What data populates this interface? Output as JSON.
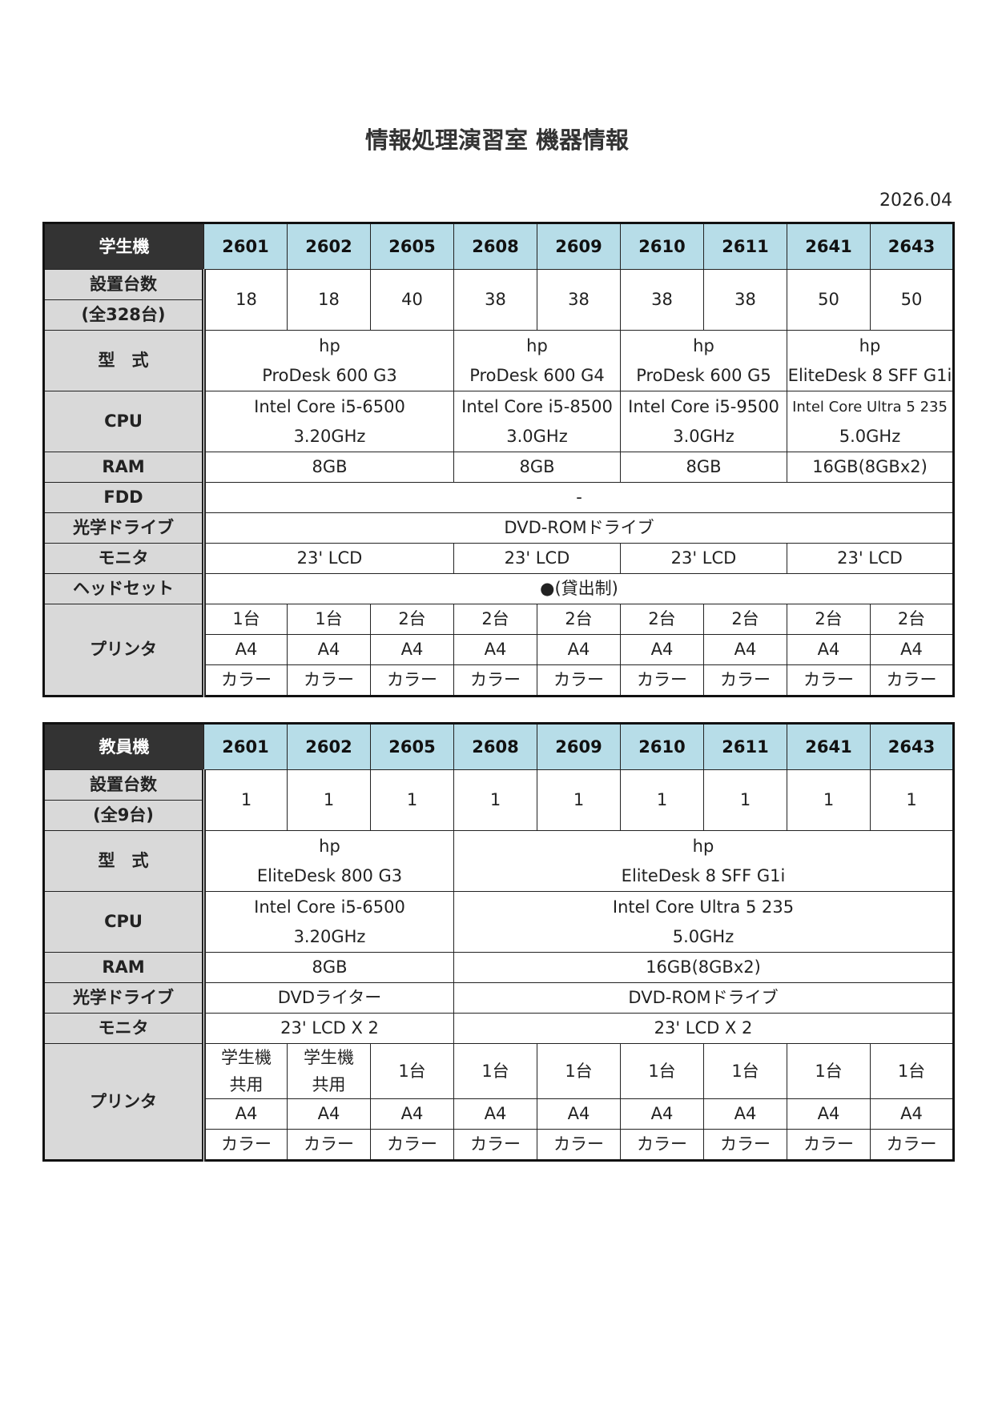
{
  "title": "情報処理演習室 機器情報",
  "date": "2026.04",
  "colors": {
    "header_bg": "#b7dde8",
    "corner_bg": "#333333",
    "label_bg": "#d9d9d9"
  },
  "tables": [
    {
      "corner": "学生機",
      "rooms": [
        "2601",
        "2602",
        "2605",
        "2608",
        "2609",
        "2610",
        "2611",
        "2641",
        "2643"
      ],
      "count_label": [
        "設置台数",
        "(全328台)"
      ],
      "counts": [
        "18",
        "18",
        "40",
        "38",
        "38",
        "38",
        "38",
        "50",
        "50"
      ],
      "rows": [
        {
          "label": "型　式",
          "cells": [
            {
              "span": 3,
              "lines": [
                "hp",
                "ProDesk 600 G3"
              ]
            },
            {
              "span": 2,
              "lines": [
                "hp",
                "ProDesk 600 G4"
              ]
            },
            {
              "span": 2,
              "lines": [
                "hp",
                "ProDesk 600 G5"
              ]
            },
            {
              "span": 2,
              "lines": [
                "hp",
                "EliteDesk 8 SFF G1i"
              ]
            }
          ]
        },
        {
          "label": "CPU",
          "cells": [
            {
              "span": 3,
              "lines": [
                "Intel Core i5-6500",
                "3.20GHz"
              ]
            },
            {
              "span": 2,
              "lines": [
                "Intel Core i5-8500",
                "3.0GHz"
              ]
            },
            {
              "span": 2,
              "lines": [
                "Intel Core i5-9500",
                "3.0GHz"
              ]
            },
            {
              "span": 2,
              "lines": [
                "Intel Core Ultra 5  235",
                "5.0GHz"
              ],
              "small_first": true
            }
          ]
        },
        {
          "label": "RAM",
          "cells": [
            {
              "span": 3,
              "lines": [
                "8GB"
              ]
            },
            {
              "span": 2,
              "lines": [
                "8GB"
              ]
            },
            {
              "span": 2,
              "lines": [
                "8GB"
              ]
            },
            {
              "span": 2,
              "lines": [
                "16GB(8GBx2)"
              ]
            }
          ]
        },
        {
          "label": "FDD",
          "cells": [
            {
              "span": 9,
              "lines": [
                "-"
              ]
            }
          ]
        },
        {
          "label": "光学ドライブ",
          "cells": [
            {
              "span": 9,
              "lines": [
                "DVD-ROMドライブ"
              ]
            }
          ]
        },
        {
          "label": "モニタ",
          "cells": [
            {
              "span": 3,
              "lines": [
                "23' LCD"
              ]
            },
            {
              "span": 2,
              "lines": [
                "23' LCD"
              ]
            },
            {
              "span": 2,
              "lines": [
                "23' LCD"
              ]
            },
            {
              "span": 2,
              "lines": [
                "23' LCD"
              ]
            }
          ]
        },
        {
          "label": "ヘッドセット",
          "cells": [
            {
              "span": 9,
              "lines": [
                "●(貸出制)"
              ]
            }
          ]
        }
      ],
      "printer": {
        "label": "プリンタ",
        "rows": [
          [
            [
              "1台"
            ],
            [
              "1台"
            ],
            [
              "2台"
            ],
            [
              "2台"
            ],
            [
              "2台"
            ],
            [
              "2台"
            ],
            [
              "2台"
            ],
            [
              "2台"
            ],
            [
              "2台"
            ]
          ],
          [
            [
              "A4"
            ],
            [
              "A4"
            ],
            [
              "A4"
            ],
            [
              "A4"
            ],
            [
              "A4"
            ],
            [
              "A4"
            ],
            [
              "A4"
            ],
            [
              "A4"
            ],
            [
              "A4"
            ]
          ],
          [
            [
              "カラー"
            ],
            [
              "カラー"
            ],
            [
              "カラー"
            ],
            [
              "カラー"
            ],
            [
              "カラー"
            ],
            [
              "カラー"
            ],
            [
              "カラー"
            ],
            [
              "カラー"
            ],
            [
              "カラー"
            ]
          ]
        ]
      }
    },
    {
      "corner": "教員機",
      "rooms": [
        "2601",
        "2602",
        "2605",
        "2608",
        "2609",
        "2610",
        "2611",
        "2641",
        "2643"
      ],
      "count_label": [
        "設置台数",
        "(全9台)"
      ],
      "counts": [
        "1",
        "1",
        "1",
        "1",
        "1",
        "1",
        "1",
        "1",
        "1"
      ],
      "rows": [
        {
          "label": "型　式",
          "cells": [
            {
              "span": 3,
              "lines": [
                "hp",
                "EliteDesk 800 G3"
              ]
            },
            {
              "span": 6,
              "lines": [
                "hp",
                "EliteDesk 8 SFF G1i"
              ]
            }
          ]
        },
        {
          "label": "CPU",
          "cells": [
            {
              "span": 3,
              "lines": [
                "Intel Core i5-6500",
                "3.20GHz"
              ]
            },
            {
              "span": 6,
              "lines": [
                "Intel Core Ultra 5  235",
                "5.0GHz"
              ]
            }
          ]
        },
        {
          "label": "RAM",
          "cells": [
            {
              "span": 3,
              "lines": [
                "8GB"
              ]
            },
            {
              "span": 6,
              "lines": [
                "16GB(8GBx2)"
              ]
            }
          ]
        },
        {
          "label": "光学ドライブ",
          "cells": [
            {
              "span": 3,
              "lines": [
                "DVDライター"
              ]
            },
            {
              "span": 6,
              "lines": [
                "DVD-ROMドライブ"
              ]
            }
          ]
        },
        {
          "label": "モニタ",
          "cells": [
            {
              "span": 3,
              "lines": [
                "23' LCD X 2"
              ]
            },
            {
              "span": 6,
              "lines": [
                "23' LCD X 2"
              ]
            }
          ]
        }
      ],
      "printer": {
        "label": "プリンタ",
        "rows": [
          [
            [
              "学生機",
              "共用"
            ],
            [
              "学生機",
              "共用"
            ],
            [
              "1台"
            ],
            [
              "1台"
            ],
            [
              "1台"
            ],
            [
              "1台"
            ],
            [
              "1台"
            ],
            [
              "1台"
            ],
            [
              "1台"
            ]
          ],
          [
            [
              "A4"
            ],
            [
              "A4"
            ],
            [
              "A4"
            ],
            [
              "A4"
            ],
            [
              "A4"
            ],
            [
              "A4"
            ],
            [
              "A4"
            ],
            [
              "A4"
            ],
            [
              "A4"
            ]
          ],
          [
            [
              "カラー"
            ],
            [
              "カラー"
            ],
            [
              "カラー"
            ],
            [
              "カラー"
            ],
            [
              "カラー"
            ],
            [
              "カラー"
            ],
            [
              "カラー"
            ],
            [
              "カラー"
            ],
            [
              "カラー"
            ]
          ]
        ]
      }
    }
  ]
}
